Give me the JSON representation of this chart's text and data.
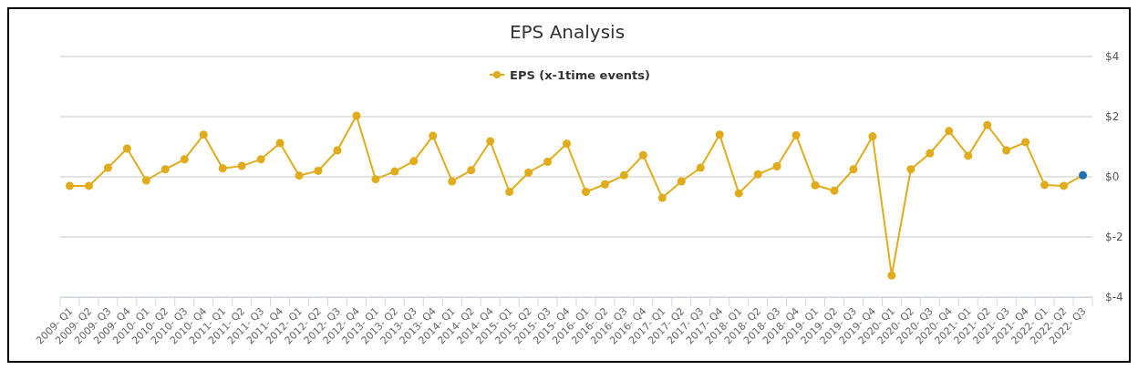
{
  "chart_data": {
    "type": "line",
    "title": "EPS Analysis",
    "categories": [
      "2009- Q1",
      "2009- Q2",
      "2009- Q3",
      "2009- Q4",
      "2010- Q1",
      "2010- Q2",
      "2010- Q3",
      "2010- Q4",
      "2011- Q1",
      "2011- Q2",
      "2011- Q3",
      "2011- Q4",
      "2012- Q1",
      "2012- Q2",
      "2012- Q3",
      "2012- Q4",
      "2013- Q1",
      "2013- Q2",
      "2013- Q3",
      "2013- Q4",
      "2014- Q1",
      "2014- Q2",
      "2014- Q4",
      "2015- Q1",
      "2015- Q2",
      "2015- Q3",
      "2015- Q4",
      "2016- Q1",
      "2016- Q2",
      "2016- Q3",
      "2016- Q4",
      "2017- Q1",
      "2017- Q2",
      "2017- Q3",
      "2017- Q4",
      "2018- Q1",
      "2018- Q2",
      "2018- Q3",
      "2018- Q4",
      "2019- Q1",
      "2019- Q2",
      "2019- Q3",
      "2019- Q4",
      "2020- Q1",
      "2020- Q2",
      "2020- Q3",
      "2020- Q4",
      "2021- Q1",
      "2021- Q2",
      "2021- Q3",
      "2021- Q4",
      "2022- Q1",
      "2022- Q2",
      "2022- Q3"
    ],
    "series": [
      {
        "name": "EPS (x-1time events)",
        "color": "#e0ac1c",
        "values": [
          -0.3,
          -0.3,
          0.3,
          0.94,
          -0.12,
          0.25,
          0.58,
          1.4,
          0.28,
          0.36,
          0.58,
          1.12,
          0.04,
          0.2,
          0.88,
          2.03,
          -0.08,
          0.18,
          0.52,
          1.36,
          -0.15,
          0.22,
          1.18,
          -0.5,
          0.14,
          0.5,
          1.1,
          -0.5,
          -0.25,
          0.05,
          0.72,
          -0.7,
          -0.15,
          0.3,
          1.4,
          -0.55,
          0.08,
          0.35,
          1.38,
          -0.28,
          -0.46,
          0.25,
          1.34,
          -3.28,
          0.25,
          0.78,
          1.52,
          0.7,
          1.72,
          0.88,
          1.15,
          -0.27,
          -0.3,
          0.05
        ],
        "colors": [
          "#e0ac1c",
          "#e0ac1c",
          "#e0ac1c",
          "#e0ac1c",
          "#e0ac1c",
          "#e0ac1c",
          "#e0ac1c",
          "#e0ac1c",
          "#e0ac1c",
          "#e0ac1c",
          "#e0ac1c",
          "#e0ac1c",
          "#e0ac1c",
          "#e0ac1c",
          "#e0ac1c",
          "#e0ac1c",
          "#e0ac1c",
          "#e0ac1c",
          "#e0ac1c",
          "#e0ac1c",
          "#e0ac1c",
          "#e0ac1c",
          "#e0ac1c",
          "#e0ac1c",
          "#e0ac1c",
          "#e0ac1c",
          "#e0ac1c",
          "#e0ac1c",
          "#e0ac1c",
          "#e0ac1c",
          "#e0ac1c",
          "#e0ac1c",
          "#e0ac1c",
          "#e0ac1c",
          "#e0ac1c",
          "#e0ac1c",
          "#e0ac1c",
          "#e0ac1c",
          "#e0ac1c",
          "#e0ac1c",
          "#e0ac1c",
          "#e0ac1c",
          "#e0ac1c",
          "#e0ac1c",
          "#e0ac1c",
          "#e0ac1c",
          "#e0ac1c",
          "#e0ac1c",
          "#e0ac1c",
          "#e0ac1c",
          "#e0ac1c",
          "#e0ac1c",
          "#e0ac1c",
          "#1f6fb2"
        ]
      }
    ],
    "ylim": [
      -4,
      4
    ],
    "yticks": [
      {
        "value": 4,
        "label": "$4"
      },
      {
        "value": 2,
        "label": "$2"
      },
      {
        "value": 0,
        "label": "$0"
      },
      {
        "value": -2,
        "label": "$-2"
      },
      {
        "value": -4,
        "label": "$-4"
      }
    ],
    "grid": "y",
    "legend": "top",
    "marker": "circle",
    "line_style": "solid"
  }
}
